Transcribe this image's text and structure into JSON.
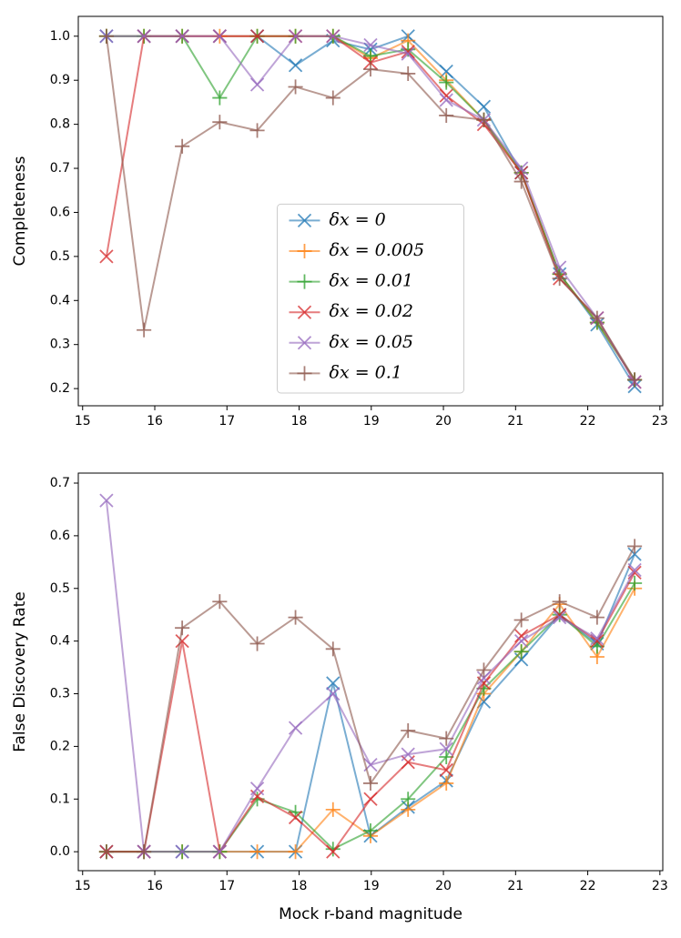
{
  "chart_data": [
    {
      "type": "line",
      "ylabel": "Completeness",
      "x": [
        15.33,
        15.85,
        16.38,
        16.9,
        17.42,
        17.95,
        18.47,
        18.99,
        19.51,
        20.04,
        20.56,
        21.08,
        21.61,
        22.13,
        22.65
      ],
      "xlim": [
        14.94,
        23.04
      ],
      "xticks": [
        15,
        16,
        17,
        18,
        19,
        20,
        21,
        22,
        23
      ],
      "ylim": [
        0.161,
        1.045
      ],
      "yticks": [
        0.2,
        0.3,
        0.4,
        0.5,
        0.6,
        0.7,
        0.8,
        0.9,
        {
          "value": 1,
          "label": "1.0"
        }
      ],
      "legend": "lower center",
      "series": [
        {
          "name": "δx = 0",
          "color": "#1f77b4",
          "marker": "x",
          "values": [
            1,
            1,
            1,
            1,
            1,
            0.934,
            0.99,
            0.97,
            1.0,
            0.92,
            0.84,
            0.69,
            0.46,
            0.345,
            0.205
          ]
        },
        {
          "name": "δx = 0.005",
          "color": "#ff7f0e",
          "marker": "+",
          "values": [
            1,
            1,
            1,
            1,
            1,
            1,
            1,
            0.95,
            0.99,
            0.9,
            0.81,
            0.69,
            0.46,
            0.35,
            0.22
          ]
        },
        {
          "name": "δx = 0.01",
          "color": "#2ca02c",
          "marker": "+",
          "values": [
            1,
            1,
            1,
            0.86,
            1,
            1,
            1,
            0.955,
            0.97,
            0.895,
            0.81,
            0.69,
            0.46,
            0.35,
            0.22
          ]
        },
        {
          "name": "δx = 0.02",
          "color": "#d62728",
          "marker": "x",
          "values": [
            0.5,
            1,
            1,
            1,
            1,
            1,
            1,
            0.94,
            0.965,
            0.865,
            0.8,
            0.69,
            0.45,
            0.36,
            0.215
          ]
        },
        {
          "name": "δx = 0.05",
          "color": "#9467bd",
          "marker": "x",
          "values": [
            1,
            1,
            1,
            1,
            0.89,
            1,
            1,
            0.98,
            0.96,
            0.855,
            0.81,
            0.7,
            0.475,
            0.36,
            0.215
          ]
        },
        {
          "name": "δx = 0.1",
          "color": "#8c564b",
          "marker": "+",
          "values": [
            1,
            0.333,
            0.75,
            0.805,
            0.786,
            0.885,
            0.86,
            0.925,
            0.915,
            0.82,
            0.81,
            0.67,
            0.45,
            0.36,
            0.22
          ]
        }
      ]
    },
    {
      "type": "line",
      "ylabel": "False Discovery Rate",
      "xlabel": "Mock r-band magnitude",
      "x": [
        15.33,
        15.85,
        16.38,
        16.9,
        17.42,
        17.95,
        18.47,
        18.99,
        19.51,
        20.04,
        20.56,
        21.08,
        21.61,
        22.13,
        22.65
      ],
      "xlim": [
        14.94,
        23.04
      ],
      "xticks": [
        15,
        16,
        17,
        18,
        19,
        20,
        21,
        22,
        23
      ],
      "ylim": [
        -0.036,
        0.719
      ],
      "yticks": [
        {
          "value": 0,
          "label": "0.0"
        },
        0.1,
        0.2,
        0.3,
        0.4,
        0.5,
        0.6,
        0.7
      ],
      "series": [
        {
          "color": "#1f77b4",
          "marker": "x",
          "values": [
            0,
            0,
            0,
            0,
            0,
            0,
            0.32,
            0.03,
            0.085,
            0.135,
            0.285,
            0.365,
            0.45,
            0.395,
            0.565
          ]
        },
        {
          "color": "#ff7f0e",
          "marker": "+",
          "values": [
            0,
            0,
            0,
            0,
            0,
            0,
            0.08,
            0.03,
            0.08,
            0.13,
            0.3,
            0.38,
            0.47,
            0.37,
            0.5
          ]
        },
        {
          "color": "#2ca02c",
          "marker": "+",
          "values": [
            0,
            0,
            0,
            0,
            0.1,
            0.075,
            0.005,
            0.04,
            0.1,
            0.18,
            0.31,
            0.38,
            0.45,
            0.39,
            0.51
          ]
        },
        {
          "color": "#d62728",
          "marker": "x",
          "values": [
            0,
            0,
            0.4,
            0,
            0.105,
            0.065,
            0,
            0.1,
            0.17,
            0.155,
            0.32,
            0.41,
            0.45,
            0.4,
            0.53
          ]
        },
        {
          "color": "#9467bd",
          "marker": "x",
          "values": [
            0.667,
            0,
            0,
            0,
            0.12,
            0.235,
            0.3,
            0.165,
            0.185,
            0.195,
            0.33,
            0.4,
            0.445,
            0.405,
            0.535
          ]
        },
        {
          "color": "#8c564b",
          "marker": "+",
          "values": [
            0,
            0,
            0.425,
            0.475,
            0.395,
            0.445,
            0.385,
            0.13,
            0.23,
            0.215,
            0.345,
            0.44,
            0.475,
            0.445,
            0.58
          ]
        }
      ]
    }
  ]
}
